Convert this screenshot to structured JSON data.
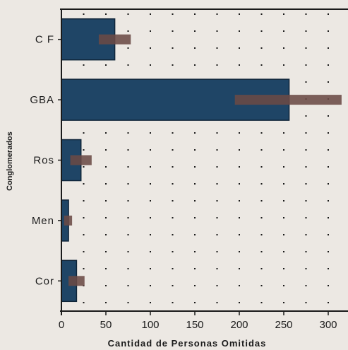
{
  "chart_data": {
    "type": "bar",
    "orientation": "horizontal",
    "categories": [
      "C F",
      "GBA",
      "Ros",
      "Men",
      "Cor"
    ],
    "series": [
      {
        "values": [
          60,
          256,
          22,
          8,
          17
        ],
        "error_low": [
          42,
          195,
          10,
          3,
          8
        ],
        "error_high": [
          78,
          315,
          34,
          12,
          26
        ]
      }
    ],
    "xlabel": "Cantidad de Personas Omitidas",
    "ylabel": "Conglomerados",
    "xlim": [
      0,
      310
    ],
    "x_ticks": [
      "0",
      "50",
      "100",
      "150",
      "200",
      "250",
      "300"
    ],
    "grid": "vertical-dotted",
    "colors": {
      "bar": "#1f4566",
      "bar_edge": "#0f2438",
      "error": "#6b4a45",
      "axis": "#1a1a1a",
      "background": "#ece8e3"
    }
  }
}
